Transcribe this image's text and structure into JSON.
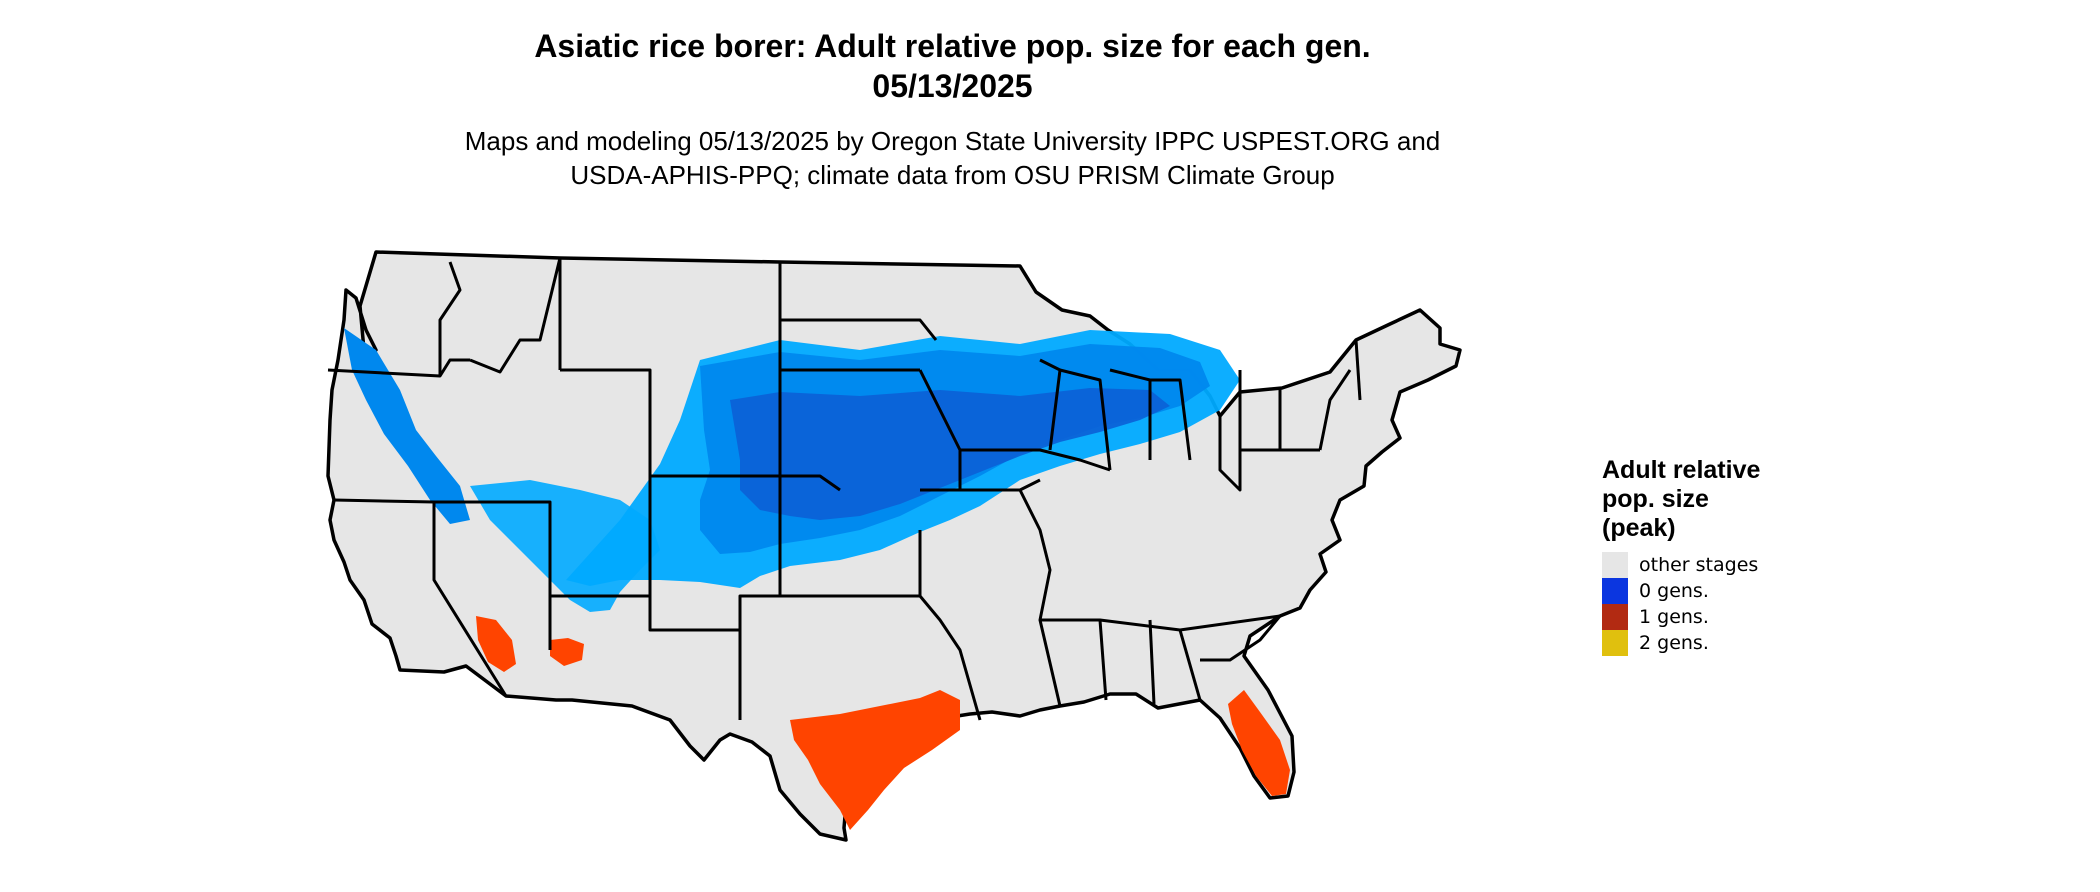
{
  "title": {
    "line1": "Asiatic rice borer: Adult relative pop. size for each gen.",
    "line2": "05/13/2025"
  },
  "subtitle": {
    "line1": "Maps and modeling 05/13/2025 by Oregon State University IPPC USPEST.ORG and",
    "line2": "USDA-APHIS-PPQ; climate data from OSU PRISM Climate Group"
  },
  "map": {
    "land_color": "#e6e6e6",
    "border_color": "#000000",
    "shading_colors": {
      "light_blue": "#00aaff",
      "mid_blue": "#0088ee",
      "dark_blue": "#0b5fd6",
      "orange": "#ff4400",
      "red": "#cc3300"
    }
  },
  "legend": {
    "title_line1": "Adult relative",
    "title_line2": "pop. size",
    "title_line3": "(peak)",
    "items": [
      {
        "label": "other stages",
        "color": "#e6e6e6"
      },
      {
        "label": "0 gens.",
        "color": "#0b36e0"
      },
      {
        "label": "1 gens.",
        "color": "#b22a12"
      },
      {
        "label": "2 gens.",
        "color": "#e0c00e"
      }
    ]
  }
}
